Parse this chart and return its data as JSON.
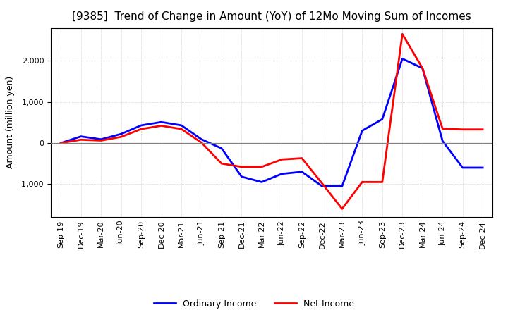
{
  "title": "[9385]  Trend of Change in Amount (YoY) of 12Mo Moving Sum of Incomes",
  "ylabel": "Amount (million yen)",
  "x_labels": [
    "Sep-19",
    "Dec-19",
    "Mar-20",
    "Jun-20",
    "Sep-20",
    "Dec-20",
    "Mar-21",
    "Jun-21",
    "Sep-21",
    "Dec-21",
    "Mar-22",
    "Jun-22",
    "Sep-22",
    "Dec-22",
    "Mar-23",
    "Jun-23",
    "Sep-23",
    "Dec-23",
    "Mar-24",
    "Jun-24",
    "Sep-24",
    "Dec-24"
  ],
  "ordinary_income": [
    0,
    160,
    90,
    220,
    430,
    510,
    430,
    90,
    -130,
    -820,
    -950,
    -750,
    -700,
    -1050,
    -1050,
    300,
    580,
    2050,
    1820,
    50,
    -600,
    -600
  ],
  "net_income": [
    0,
    80,
    60,
    150,
    340,
    420,
    340,
    10,
    -500,
    -580,
    -580,
    -400,
    -370,
    -980,
    -1600,
    -950,
    -950,
    2650,
    1820,
    350,
    330,
    330
  ],
  "ordinary_income_color": "#0000ff",
  "net_income_color": "#ff0000",
  "ylim": [
    -1800,
    2800
  ],
  "yticks": [
    -1000,
    0,
    1000,
    2000
  ],
  "background_color": "#ffffff",
  "grid_color": "#bbbbbb",
  "line_width": 2.0,
  "legend_ordinary": "Ordinary Income",
  "legend_net": "Net Income",
  "title_fontsize": 11,
  "ylabel_fontsize": 9,
  "tick_fontsize": 8
}
